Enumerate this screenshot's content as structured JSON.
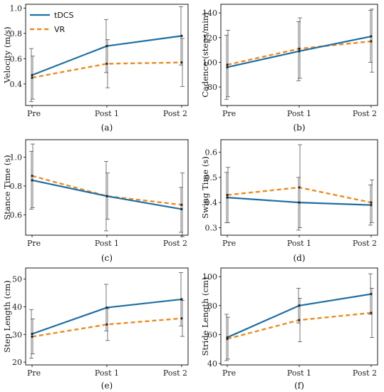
{
  "colors": {
    "tdcs": "#1f6fa3",
    "vr": "#f08a1f",
    "errorbar": "#555555",
    "frame": "#000000"
  },
  "legend": {
    "placement": "top-left",
    "panel": 0,
    "entries": [
      "tDCS",
      "VR"
    ]
  },
  "chart_data": [
    {
      "type": "line",
      "panel_label": "(a)",
      "categories": [
        "Pre",
        "Post 1",
        "Post 2"
      ],
      "ylabel": "Velocity (m/s)",
      "ylim": [
        0.23,
        1.03
      ],
      "yticks": [
        0.4,
        0.6,
        0.8,
        1.0
      ],
      "ytick_labels": [
        "0.4",
        "0.6",
        "0.8",
        "1.0"
      ],
      "series": [
        {
          "name": "tDCS",
          "values": [
            0.47,
            0.7,
            0.78
          ],
          "err_low": [
            0.26,
            0.49,
            0.55
          ],
          "err_high": [
            0.68,
            0.91,
            1.01
          ]
        },
        {
          "name": "VR",
          "values": [
            0.45,
            0.56,
            0.57
          ],
          "err_low": [
            0.28,
            0.37,
            0.38
          ],
          "err_high": [
            0.62,
            0.75,
            0.76
          ]
        }
      ]
    },
    {
      "type": "line",
      "panel_label": "(b)",
      "categories": [
        "Pre",
        "Post 1",
        "Post 2"
      ],
      "ylabel": "Cadence (steps/min)",
      "ylim": [
        65,
        147
      ],
      "yticks": [
        80,
        100,
        120,
        140
      ],
      "ytick_labels": [
        "80",
        "100",
        "120",
        "140"
      ],
      "series": [
        {
          "name": "tDCS",
          "values": [
            96,
            109,
            121
          ],
          "err_low": [
            70,
            85,
            100
          ],
          "err_high": [
            122,
            133,
            142
          ]
        },
        {
          "name": "VR",
          "values": [
            98,
            111,
            117
          ],
          "err_low": [
            72,
            87,
            92
          ],
          "err_high": [
            126,
            136,
            143
          ]
        }
      ]
    },
    {
      "type": "line",
      "panel_label": "(c)",
      "categories": [
        "Pre",
        "Post 1",
        "Post 2"
      ],
      "ylabel": "Stance Time (s)",
      "ylim": [
        0.46,
        1.12
      ],
      "yticks": [
        0.6,
        0.8,
        1.0
      ],
      "ytick_labels": [
        "0.6",
        "0.8",
        "1.0"
      ],
      "series": [
        {
          "name": "tDCS",
          "values": [
            0.84,
            0.73,
            0.64
          ],
          "err_low": [
            0.64,
            0.49,
            0.48
          ],
          "err_high": [
            1.04,
            0.97,
            0.79
          ]
        },
        {
          "name": "VR",
          "values": [
            0.87,
            0.73,
            0.67
          ],
          "err_low": [
            0.65,
            0.57,
            0.45
          ],
          "err_high": [
            1.09,
            0.89,
            0.89
          ]
        }
      ]
    },
    {
      "type": "line",
      "panel_label": "(d)",
      "categories": [
        "Pre",
        "Post 1",
        "Post 2"
      ],
      "ylabel": "Swing Time (s)",
      "ylim": [
        0.27,
        0.65
      ],
      "yticks": [
        0.3,
        0.4,
        0.5,
        0.6
      ],
      "ytick_labels": [
        "0.3",
        "0.4",
        "0.5",
        "0.6"
      ],
      "series": [
        {
          "name": "tDCS",
          "values": [
            0.42,
            0.4,
            0.39
          ],
          "err_low": [
            0.32,
            0.29,
            0.31
          ],
          "err_high": [
            0.52,
            0.5,
            0.47
          ]
        },
        {
          "name": "VR",
          "values": [
            0.43,
            0.46,
            0.4
          ],
          "err_low": [
            0.32,
            0.3,
            0.32
          ],
          "err_high": [
            0.54,
            0.63,
            0.49
          ]
        }
      ]
    },
    {
      "type": "line",
      "panel_label": "(e)",
      "categories": [
        "Pre",
        "Post 1",
        "Post 2"
      ],
      "ylabel": "Step Length (cm)",
      "ylim": [
        19,
        54
      ],
      "yticks": [
        20,
        30,
        40,
        50
      ],
      "ytick_labels": [
        "20",
        "30",
        "40",
        "50"
      ],
      "series": [
        {
          "name": "tDCS",
          "values": [
            30.2,
            39.7,
            42.7
          ],
          "err_low": [
            21.4,
            31.3,
            33.1
          ],
          "err_high": [
            39.0,
            48.1,
            52.3
          ]
        },
        {
          "name": "VR",
          "values": [
            29.2,
            33.6,
            35.8
          ],
          "err_low": [
            23.0,
            27.8,
            29.3
          ],
          "err_high": [
            35.6,
            39.4,
            42.3
          ]
        }
      ]
    },
    {
      "type": "line",
      "panel_label": "(f)",
      "categories": [
        "Pre",
        "Post 1",
        "Post 2"
      ],
      "ylabel": "Stride Length (cm)",
      "ylim": [
        39,
        106
      ],
      "yticks": [
        40,
        60,
        80,
        100
      ],
      "ytick_labels": [
        "40",
        "60",
        "80",
        "100"
      ],
      "series": [
        {
          "name": "tDCS",
          "values": [
            58,
            80,
            88
          ],
          "err_low": [
            42,
            68,
            74
          ],
          "err_high": [
            74,
            92,
            102
          ]
        },
        {
          "name": "VR",
          "values": [
            57,
            70,
            75
          ],
          "err_low": [
            43,
            55,
            58
          ],
          "err_high": [
            72,
            85,
            92
          ]
        }
      ]
    }
  ]
}
